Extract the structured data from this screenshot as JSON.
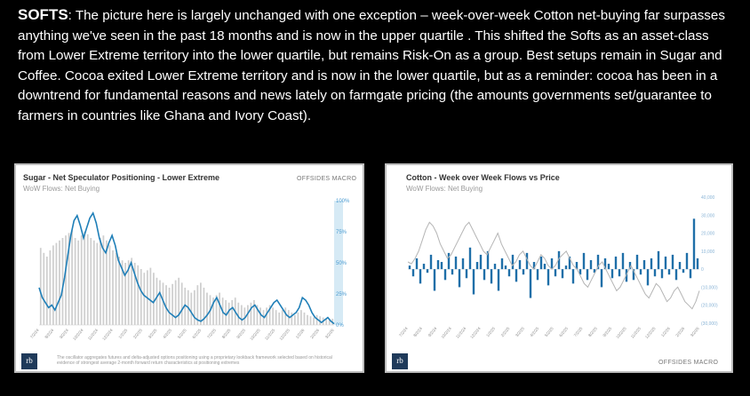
{
  "commentary": {
    "heading": "SOFTS",
    "body": ": The picture here is largely unchanged with one exception – week-over-week Cotton net-buying far surpasses anything we've seen in the past 18 months and is now in the upper quartile . This shifted the Softs as an asset-class from Lower Extreme territory into the lower quartile, but remains Risk-On as a group. Best setups remain in Sugar and Coffee.  Cocoa exited Lower Extreme territory and is now in the lower quartile, but as a reminder: cocoa has been in a downtrend for fundamental reasons and news lately on farmgate pricing (the amounts governments set/guarantee to farmers in countries like Ghana and Ivory Coast)."
  },
  "sugar_card": {
    "title": "Sugar - Net Speculator Positioning - Lower Extreme",
    "subtitle": "WoW Flows: Net Buying",
    "brand": "OFFSIDES MACRO",
    "logo": "rb",
    "footnote": "The oscillator aggregates futures and delta-adjusted options positioning using a proprietary lookback framework selected based on historical evidence of strongest average 2-month forward return characteristics at positioning extremes",
    "colors": {
      "line": "#1f7fb8",
      "bars": "#cfcfcf",
      "quartile_band": "#d6eaf5",
      "axis_text": "#4a9bd1"
    }
  },
  "cotton_card": {
    "title": "Cotton - Week over Week Flows vs Price",
    "subtitle": "WoW Flows: Net Buying",
    "brand": "OFFSIDES MACRO",
    "logo": "rb",
    "colors": {
      "bars": "#1f6fa8",
      "price": "#b5b5b5",
      "axis_text": "#8ab4d6"
    }
  },
  "chart_data": [
    {
      "type": "line",
      "title": "Sugar - Net Speculator Positioning - Lower Extreme",
      "subtitle": "WoW Flows: Net Buying",
      "x_ticks": [
        "7/2/24",
        "8/2/24",
        "9/2/24",
        "10/2/24",
        "11/2/24",
        "12/2/24",
        "1/2/25",
        "2/2/25",
        "3/2/25",
        "4/2/25",
        "5/2/25",
        "6/2/25",
        "7/2/25",
        "8/2/25",
        "9/2/25",
        "10/2/25",
        "11/2/25",
        "12/2/25",
        "1/2/26",
        "2/2/26",
        "3/2/26"
      ],
      "y_ticks": [
        "100%",
        "75%",
        "50%",
        "25%",
        "0%"
      ],
      "ylim": [
        0,
        100
      ],
      "series": [
        {
          "values": [
            30,
            22,
            18,
            14,
            16,
            12,
            18,
            24,
            38,
            55,
            72,
            84,
            88,
            80,
            70,
            78,
            86,
            90,
            82,
            70,
            62,
            58,
            66,
            72,
            64,
            52,
            46,
            40,
            44,
            50,
            42,
            34,
            28,
            24,
            22,
            20,
            18,
            22,
            26,
            20,
            14,
            10,
            8,
            6,
            8,
            12,
            16,
            14,
            10,
            6,
            4,
            3,
            5,
            8,
            12,
            18,
            22,
            16,
            10,
            8,
            12,
            14,
            10,
            6,
            4,
            6,
            10,
            14,
            16,
            12,
            8,
            6,
            10,
            14,
            18,
            20,
            16,
            12,
            8,
            6,
            8,
            10,
            14,
            22,
            20,
            16,
            10,
            6,
            4,
            2,
            4,
            6,
            3,
            1
          ]
        },
        {
          "type": "bar",
          "values": [
            62,
            58,
            55,
            60,
            64,
            66,
            68,
            70,
            72,
            74,
            76,
            70,
            68,
            72,
            75,
            73,
            70,
            68,
            66,
            70,
            72,
            68,
            64,
            60,
            58,
            55,
            52,
            50,
            52,
            54,
            50,
            48,
            45,
            42,
            44,
            46,
            42,
            38,
            36,
            34,
            32,
            30,
            33,
            36,
            38,
            34,
            30,
            28,
            26,
            28,
            32,
            34,
            30,
            26,
            24,
            22,
            24,
            26,
            22,
            20,
            18,
            20,
            22,
            18,
            16,
            14,
            16,
            18,
            20,
            16,
            14,
            12,
            14,
            16,
            14,
            12,
            10,
            12,
            14,
            12,
            10,
            8,
            10,
            12,
            10,
            8,
            7,
            6,
            8,
            7,
            6,
            5,
            4,
            5
          ]
        }
      ]
    },
    {
      "type": "bar",
      "title": "Cotton - Week over Week Flows vs Price",
      "subtitle": "WoW Flows: Net Buying",
      "x_ticks": [
        "7/2/24",
        "8/2/24",
        "9/2/24",
        "10/2/24",
        "11/2/24",
        "12/2/24",
        "1/2/25",
        "2/2/25",
        "3/2/25",
        "4/2/25",
        "5/2/25",
        "6/2/25",
        "7/2/25",
        "8/2/25",
        "9/2/25",
        "10/2/25",
        "11/2/25",
        "12/2/25",
        "1/2/26",
        "2/2/26",
        "3/2/26"
      ],
      "y_ticks": [
        "40,000",
        "30,000",
        "20,000",
        "10,000",
        "0",
        "(10,000)",
        "(20,000)",
        "(30,000)"
      ],
      "ylim": [
        -30000,
        40000
      ],
      "series": [
        {
          "type": "bar",
          "values": [
            2000,
            -4000,
            6000,
            -8000,
            3000,
            -2000,
            8000,
            -12000,
            5000,
            4000,
            -6000,
            9000,
            -3000,
            7000,
            -10000,
            6000,
            -5000,
            12000,
            -14000,
            4000,
            8000,
            -6000,
            10000,
            -8000,
            3000,
            -12000,
            6000,
            2000,
            -4000,
            8000,
            -7000,
            5000,
            -3000,
            9000,
            -16000,
            4000,
            -6000,
            7000,
            3000,
            -9000,
            6000,
            -4000,
            10000,
            -5000,
            2000,
            7000,
            -8000,
            4000,
            -3000,
            9000,
            -6000,
            5000,
            -2000,
            8000,
            -10000,
            6000,
            3000,
            -5000,
            7000,
            -4000,
            9000,
            -7000,
            4000,
            -6000,
            8000,
            -3000,
            5000,
            -9000,
            6000,
            -4000,
            10000,
            -5000,
            7000,
            -3000,
            8000,
            -6000,
            4000,
            -2000,
            9000,
            -5000,
            28000,
            6000
          ]
        },
        {
          "type": "line",
          "values": [
            4000,
            3000,
            6000,
            10000,
            16000,
            22000,
            26000,
            24000,
            20000,
            14000,
            10000,
            6000,
            8000,
            12000,
            16000,
            20000,
            24000,
            26000,
            22000,
            18000,
            14000,
            10000,
            8000,
            12000,
            16000,
            20000,
            14000,
            10000,
            6000,
            2000,
            4000,
            8000,
            10000,
            6000,
            2000,
            0,
            4000,
            8000,
            6000,
            2000,
            0,
            2000,
            6000,
            8000,
            10000,
            6000,
            2000,
            0,
            -4000,
            -8000,
            -10000,
            -6000,
            -2000,
            2000,
            4000,
            0,
            -4000,
            -8000,
            -12000,
            -10000,
            -6000,
            -2000,
            2000,
            -2000,
            -6000,
            -10000,
            -14000,
            -16000,
            -12000,
            -8000,
            -10000,
            -14000,
            -18000,
            -16000,
            -12000,
            -10000,
            -14000,
            -18000,
            -20000,
            -22000,
            -18000,
            -12000
          ]
        }
      ]
    }
  ]
}
